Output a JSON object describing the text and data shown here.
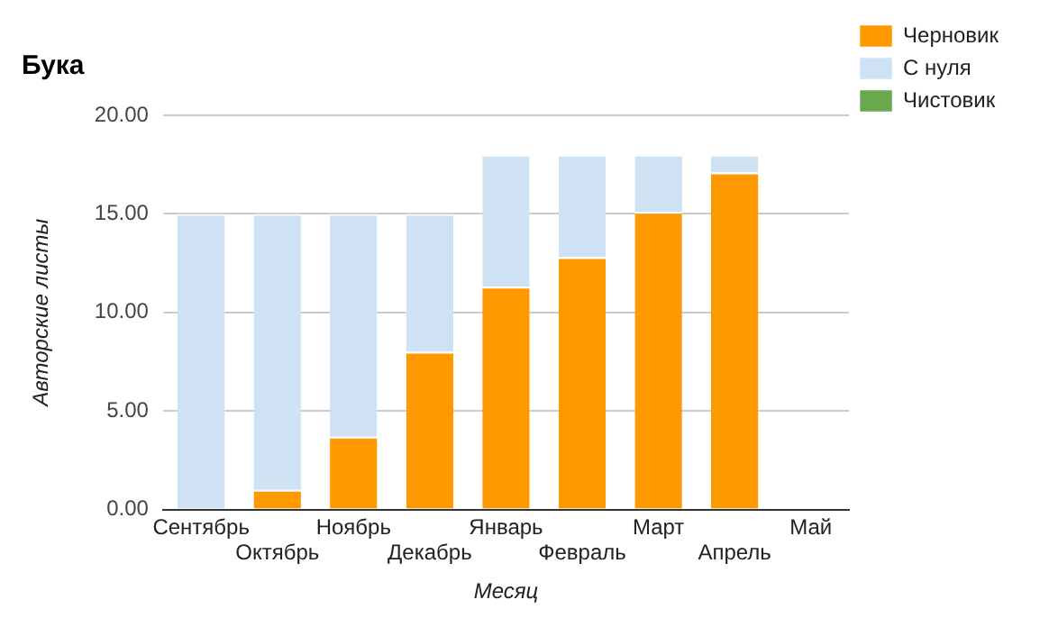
{
  "chart_data": {
    "type": "bar",
    "title": "Бука",
    "xlabel": "Месяц",
    "ylabel": "Авторские листы",
    "categories": [
      "Сентябрь",
      "Октябрь",
      "Ноябрь",
      "Декабрь",
      "Январь",
      "Февраль",
      "Март",
      "Апрель",
      "Май"
    ],
    "stacked": true,
    "series": [
      {
        "name": "Черновик",
        "color": "#ff9900",
        "values": [
          0,
          1.0,
          3.7,
          8.0,
          11.3,
          12.8,
          15.1,
          17.1,
          null
        ]
      },
      {
        "name": "С нуля",
        "color": "#cfe2f3",
        "values": [
          15,
          14,
          11.3,
          7,
          6.7,
          5.2,
          2.9,
          0.9,
          null
        ]
      },
      {
        "name": "Чистовик",
        "color": "#6aa84f",
        "values": [
          null,
          null,
          null,
          null,
          null,
          null,
          null,
          null,
          null
        ]
      }
    ],
    "ylim": [
      0,
      20
    ],
    "yticks": [
      {
        "value": 0,
        "label": "0.00"
      },
      {
        "value": 5,
        "label": "5.00"
      },
      {
        "value": 10,
        "label": "10.00"
      },
      {
        "value": 15,
        "label": "15.00"
      },
      {
        "value": 20,
        "label": "20.00"
      }
    ],
    "grid": "y",
    "legend": "right"
  }
}
